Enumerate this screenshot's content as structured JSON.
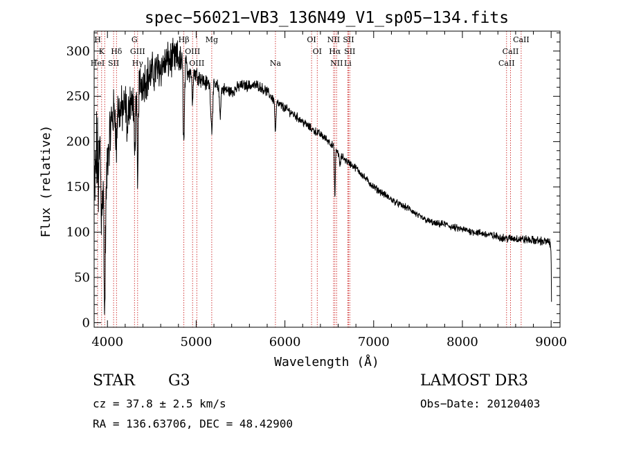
{
  "chart_data": {
    "type": "line",
    "title": "spec−56021−VB3_136N49_V1_sp05−134.fits",
    "xlabel": "Wavelength (Å)",
    "ylabel": "Flux (relative)",
    "xlim": [
      3850,
      9100
    ],
    "ylim": [
      -5,
      322
    ],
    "xticks": [
      {
        "value": 4000,
        "label": "4000"
      },
      {
        "value": 5000,
        "label": "5000"
      },
      {
        "value": 6000,
        "label": "6000"
      },
      {
        "value": 7000,
        "label": "7000"
      },
      {
        "value": 8000,
        "label": "8000"
      },
      {
        "value": 9000,
        "label": "9000"
      }
    ],
    "yticks": [
      {
        "value": 0,
        "label": "0"
      },
      {
        "value": 50,
        "label": "50"
      },
      {
        "value": 100,
        "label": "100"
      },
      {
        "value": 150,
        "label": "150"
      },
      {
        "value": 200,
        "label": "200"
      },
      {
        "value": 250,
        "label": "250"
      },
      {
        "value": 300,
        "label": "300"
      }
    ],
    "series": [
      {
        "name": "flux",
        "anchors": [
          [
            3850,
            130
          ],
          [
            3880,
            190
          ],
          [
            3900,
            155
          ],
          [
            3920,
            200
          ],
          [
            3950,
            140
          ],
          [
            3980,
            110
          ],
          [
            4000,
            185
          ],
          [
            4050,
            225
          ],
          [
            4100,
            240
          ],
          [
            4150,
            232
          ],
          [
            4200,
            238
          ],
          [
            4250,
            248
          ],
          [
            4300,
            240
          ],
          [
            4350,
            262
          ],
          [
            4400,
            268
          ],
          [
            4500,
            275
          ],
          [
            4600,
            282
          ],
          [
            4700,
            290
          ],
          [
            4800,
            292
          ],
          [
            4850,
            283
          ],
          [
            4900,
            280
          ],
          [
            5000,
            275
          ],
          [
            5100,
            265
          ],
          [
            5200,
            262
          ],
          [
            5300,
            258
          ],
          [
            5400,
            255
          ],
          [
            5500,
            262
          ],
          [
            5600,
            262
          ],
          [
            5700,
            262
          ],
          [
            5800,
            255
          ],
          [
            5900,
            243
          ],
          [
            6000,
            237
          ],
          [
            6100,
            230
          ],
          [
            6200,
            222
          ],
          [
            6300,
            214
          ],
          [
            6400,
            208
          ],
          [
            6500,
            200
          ],
          [
            6600,
            188
          ],
          [
            6700,
            178
          ],
          [
            6800,
            171
          ],
          [
            6900,
            160
          ],
          [
            7000,
            150
          ],
          [
            7100,
            143
          ],
          [
            7200,
            136
          ],
          [
            7300,
            130
          ],
          [
            7400,
            126
          ],
          [
            7500,
            118
          ],
          [
            7600,
            113
          ],
          [
            7700,
            109
          ],
          [
            7800,
            109
          ],
          [
            7900,
            105
          ],
          [
            8000,
            103
          ],
          [
            8100,
            101
          ],
          [
            8200,
            99
          ],
          [
            8300,
            97
          ],
          [
            8400,
            95
          ],
          [
            8500,
            93
          ],
          [
            8600,
            93
          ],
          [
            8700,
            92
          ],
          [
            8800,
            91
          ],
          [
            8900,
            90
          ],
          [
            8980,
            89
          ],
          [
            9000,
            80
          ],
          [
            9005,
            15
          ]
        ],
        "absorption": [
          [
            3930,
            70,
            5
          ],
          [
            3968,
            120,
            5
          ],
          [
            4101,
            50,
            6
          ],
          [
            4227,
            35,
            8
          ],
          [
            4307,
            60,
            6
          ],
          [
            4340,
            110,
            6
          ],
          [
            4861,
            85,
            7
          ],
          [
            4957,
            30,
            6
          ],
          [
            5175,
            48,
            10
          ],
          [
            5270,
            28,
            8
          ],
          [
            5893,
            35,
            6
          ],
          [
            6563,
            55,
            5
          ],
          [
            6620,
            12,
            8
          ]
        ],
        "noise": [
          [
            3850,
            50
          ],
          [
            4000,
            25
          ],
          [
            4300,
            20
          ],
          [
            4800,
            16
          ],
          [
            5000,
            8
          ],
          [
            5500,
            5
          ],
          [
            6500,
            3.5
          ],
          [
            7500,
            3
          ],
          [
            9000,
            4
          ]
        ]
      }
    ],
    "lines": [
      {
        "label": "H",
        "wl": 3889,
        "row": 0
      },
      {
        "label": "K",
        "wl": 3934,
        "row": 1
      },
      {
        "label": "HeI",
        "wl": 3889,
        "row": 2
      },
      {
        "label": "Hδ",
        "wl": 4102,
        "row": 1
      },
      {
        "label": "SII",
        "wl": 4069,
        "row": 2
      },
      {
        "label": "G",
        "wl": 4305,
        "row": 0
      },
      {
        "label": "GIII",
        "wl": 4340,
        "row": 1
      },
      {
        "label": "Hγ",
        "wl": 4340,
        "row": 2
      },
      {
        "label": "Hβ",
        "wl": 4861,
        "row": 0
      },
      {
        "label": "OIII",
        "wl": 4959,
        "row": 1
      },
      {
        "label": "OIII",
        "wl": 5007,
        "row": 2
      },
      {
        "label": "Mg",
        "wl": 5175,
        "row": 0
      },
      {
        "label": "Na",
        "wl": 5893,
        "row": 2
      },
      {
        "label": "OI",
        "wl": 6300,
        "row": 0
      },
      {
        "label": "OI",
        "wl": 6364,
        "row": 1
      },
      {
        "label": "NII",
        "wl": 6548,
        "row": 0
      },
      {
        "label": "Hα",
        "wl": 6563,
        "row": 1
      },
      {
        "label": "NII",
        "wl": 6583,
        "row": 2
      },
      {
        "label": "SII",
        "wl": 6717,
        "row": 0
      },
      {
        "label": "SII",
        "wl": 6731,
        "row": 1
      },
      {
        "label": "Li",
        "wl": 6708,
        "row": 2
      },
      {
        "label": "CaII",
        "wl": 8662,
        "row": 0
      },
      {
        "label": "CaII",
        "wl": 8542,
        "row": 1
      },
      {
        "label": "CaII",
        "wl": 8498,
        "row": 2
      }
    ],
    "marker_lines": [
      3889,
      3934,
      3969,
      4069,
      4102,
      4305,
      4340,
      4861,
      4959,
      5007,
      5175,
      5893,
      6300,
      6364,
      6548,
      6563,
      6583,
      6708,
      6717,
      6731,
      8498,
      8542,
      8662
    ]
  },
  "info": {
    "obj_class": "STAR",
    "subclass": "G3",
    "survey": "LAMOST DR3",
    "cz": "cz = 37.8 ± 2.5 km/s",
    "obs_date": "Obs−Date: 20120403",
    "coords": "RA = 136.63706, DEC =  48.42900"
  },
  "colors": {
    "line": "#000000",
    "marker": "#cc2222",
    "axis": "#000000",
    "background": "#ffffff"
  }
}
